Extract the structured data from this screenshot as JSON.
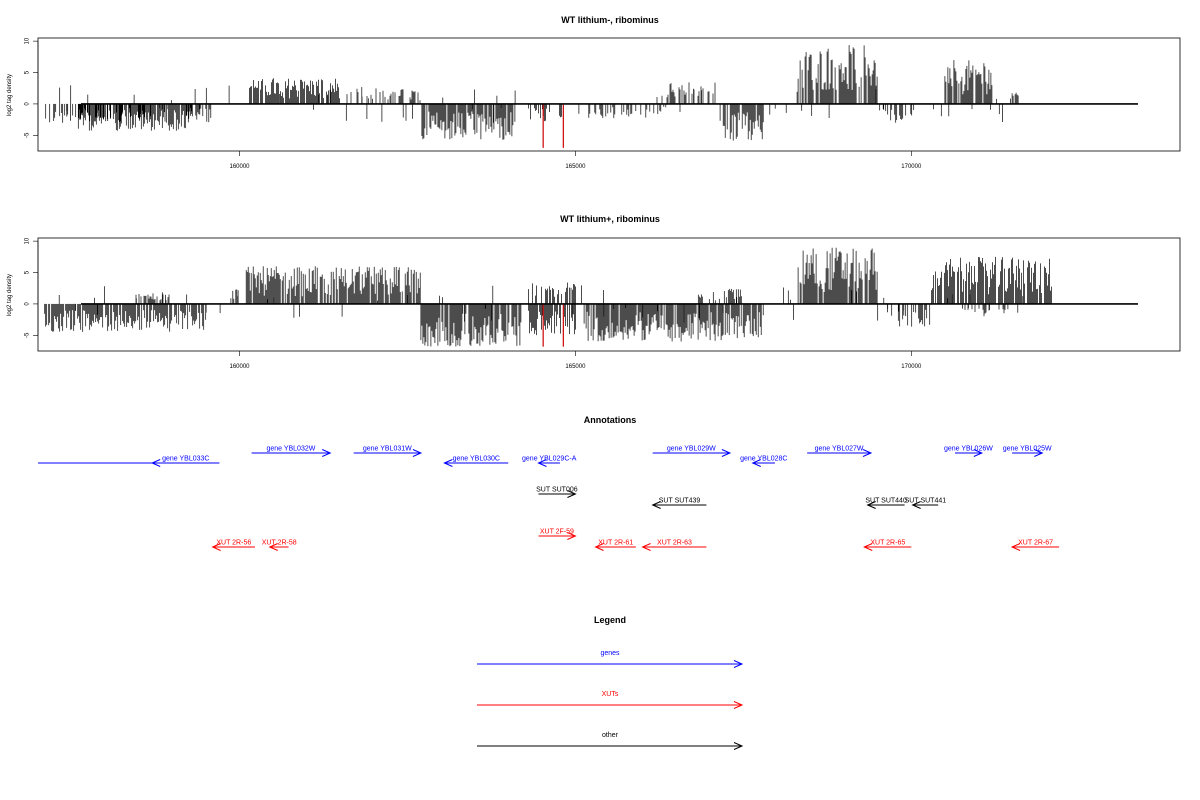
{
  "colors": {
    "genes": "#0000ff",
    "xuts": "#ff0000",
    "other": "#000000",
    "highlight": "#cc0000"
  },
  "chart_data": [
    {
      "type": "bar",
      "title": "WT lithium-, ribominus",
      "ylabel": "log2 tag density",
      "xlim": [
        157000,
        174000
      ],
      "ylim": [
        -7.5,
        10.5
      ],
      "xticks": [
        "160000",
        "165000",
        "170000"
      ],
      "yticks": [
        "10",
        "5",
        "0",
        "-5"
      ],
      "segments": [
        {
          "x0": 157100,
          "x1": 158700,
          "sign": -1,
          "max": 3.2
        },
        {
          "x0": 157600,
          "x1": 159300,
          "sign": -1,
          "max": 4.3
        },
        {
          "x0": 159200,
          "x1": 159600,
          "sign": -1,
          "max": 3.0
        },
        {
          "x0": 160150,
          "x1": 161500,
          "sign": 1,
          "max": 4.2
        },
        {
          "x0": 161600,
          "x1": 162700,
          "sign": 1,
          "max": 2.5
        },
        {
          "x0": 162700,
          "x1": 164100,
          "sign": -1,
          "max": 6.0
        },
        {
          "x0": 164300,
          "x1": 164800,
          "sign": -1,
          "max": 3.0
        },
        {
          "x0": 165200,
          "x1": 166400,
          "sign": -1,
          "max": 2.3
        },
        {
          "x0": 166200,
          "x1": 167100,
          "sign": 1,
          "max": 3.5
        },
        {
          "x0": 167200,
          "x1": 167800,
          "sign": -1,
          "max": 6.0
        },
        {
          "x0": 168300,
          "x1": 169500,
          "sign": 1,
          "max": 9.5
        },
        {
          "x0": 169500,
          "x1": 170100,
          "sign": -1,
          "max": 3.0
        },
        {
          "x0": 170500,
          "x1": 171200,
          "sign": 1,
          "max": 7.0
        },
        {
          "x0": 171500,
          "x1": 171600,
          "sign": 1,
          "max": 1.8
        }
      ],
      "highlights": [
        {
          "x": 164520,
          "y": -7.0
        },
        {
          "x": 164820,
          "y": -7.0
        }
      ]
    },
    {
      "type": "bar",
      "title": "WT lithium+, ribominus",
      "ylabel": "log2 tag density",
      "xlim": [
        157000,
        174000
      ],
      "ylim": [
        -7.5,
        10.5
      ],
      "xticks": [
        "160000",
        "165000",
        "170000"
      ],
      "yticks": [
        "10",
        "5",
        "0",
        "-5"
      ],
      "segments": [
        {
          "x0": 157100,
          "x1": 159500,
          "sign": -1,
          "max": 4.5
        },
        {
          "x0": 158400,
          "x1": 159000,
          "sign": 1,
          "max": 1.8
        },
        {
          "x0": 159900,
          "x1": 160000,
          "sign": 1,
          "max": 2.6
        },
        {
          "x0": 160100,
          "x1": 162700,
          "sign": 1,
          "max": 6.0
        },
        {
          "x0": 162700,
          "x1": 164200,
          "sign": -1,
          "max": 6.8
        },
        {
          "x0": 164300,
          "x1": 165100,
          "sign": 1,
          "max": 3.5
        },
        {
          "x0": 164300,
          "x1": 165000,
          "sign": -1,
          "max": 5.0
        },
        {
          "x0": 165100,
          "x1": 167200,
          "sign": -1,
          "max": 6.0
        },
        {
          "x0": 166800,
          "x1": 167500,
          "sign": 1,
          "max": 2.5
        },
        {
          "x0": 167200,
          "x1": 167800,
          "sign": -1,
          "max": 5.5
        },
        {
          "x0": 168300,
          "x1": 169500,
          "sign": 1,
          "max": 9.2
        },
        {
          "x0": 169500,
          "x1": 170300,
          "sign": -1,
          "max": 3.8
        },
        {
          "x0": 170300,
          "x1": 172100,
          "sign": 1,
          "max": 7.5
        },
        {
          "x0": 170800,
          "x1": 171400,
          "sign": -1,
          "max": 2.0
        }
      ],
      "highlights": [
        {
          "x": 164520,
          "y": -6.8
        },
        {
          "x": 164820,
          "y": -6.8
        }
      ]
    },
    {
      "type": "annotation-track",
      "title": "Annotations",
      "xlim": [
        157000,
        174000
      ],
      "features": [
        {
          "label": "",
          "start": 157000,
          "end": 158850,
          "strand": "none",
          "kind": "gene",
          "row": 1
        },
        {
          "label": "gene YBL033C",
          "start": 158700,
          "end": 159700,
          "strand": "-",
          "kind": "gene",
          "row": 1
        },
        {
          "label": "gene YBL032W",
          "start": 160180,
          "end": 161350,
          "strand": "+",
          "kind": "gene",
          "row": 0
        },
        {
          "label": "gene YBL031W",
          "start": 161700,
          "end": 162700,
          "strand": "+",
          "kind": "gene",
          "row": 0
        },
        {
          "label": "gene YBL030C",
          "start": 163050,
          "end": 164000,
          "strand": "-",
          "kind": "gene",
          "row": 1
        },
        {
          "label": "gene YBL029C-A",
          "start": 164450,
          "end": 164770,
          "strand": "-",
          "kind": "gene",
          "row": 1
        },
        {
          "label": "gene YBL029W",
          "start": 166150,
          "end": 167300,
          "strand": "+",
          "kind": "gene",
          "row": 0
        },
        {
          "label": "gene YBL028C",
          "start": 167640,
          "end": 167970,
          "strand": "-",
          "kind": "gene",
          "row": 1
        },
        {
          "label": "gene YBL027W",
          "start": 168450,
          "end": 169400,
          "strand": "+",
          "kind": "gene",
          "row": 0
        },
        {
          "label": "gene YBL026W",
          "start": 170650,
          "end": 171050,
          "strand": "+",
          "kind": "gene",
          "row": 0
        },
        {
          "label": "gene YBL025W",
          "start": 171500,
          "end": 171950,
          "strand": "+",
          "kind": "gene",
          "row": 0
        },
        {
          "label": "SUT SUT006",
          "start": 164450,
          "end": 165000,
          "strand": "+",
          "kind": "other",
          "row": 2
        },
        {
          "label": "SUT SUT439",
          "start": 166150,
          "end": 166950,
          "strand": "-",
          "kind": "other",
          "row": 3
        },
        {
          "label": "SUT SUT440",
          "start": 169350,
          "end": 169900,
          "strand": "-",
          "kind": "other",
          "row": 3
        },
        {
          "label": "SUT SUT441",
          "start": 170020,
          "end": 170400,
          "strand": "-",
          "kind": "other",
          "row": 3
        },
        {
          "label": "XUT 2R-56",
          "start": 159600,
          "end": 160230,
          "strand": "-",
          "kind": "xut",
          "row": 5
        },
        {
          "label": "XUT 2R-58",
          "start": 160450,
          "end": 160730,
          "strand": "-",
          "kind": "xut",
          "row": 5
        },
        {
          "label": "XUT 2F-59",
          "start": 164450,
          "end": 165000,
          "strand": "+",
          "kind": "xut",
          "row": 4
        },
        {
          "label": "XUT 2R-61",
          "start": 165300,
          "end": 165900,
          "strand": "-",
          "kind": "xut",
          "row": 5
        },
        {
          "label": "XUT 2R-63",
          "start": 166000,
          "end": 166950,
          "strand": "-",
          "kind": "xut",
          "row": 5
        },
        {
          "label": "XUT 2R-65",
          "start": 169300,
          "end": 170000,
          "strand": "-",
          "kind": "xut",
          "row": 5
        },
        {
          "label": "XUT 2R-67",
          "start": 171500,
          "end": 172200,
          "strand": "-",
          "kind": "xut",
          "row": 5
        }
      ]
    },
    {
      "type": "legend",
      "title": "Legend",
      "entries": [
        {
          "label": "genes",
          "kind": "gene"
        },
        {
          "label": "XUTs",
          "kind": "xut"
        },
        {
          "label": "other",
          "kind": "other"
        }
      ]
    }
  ]
}
